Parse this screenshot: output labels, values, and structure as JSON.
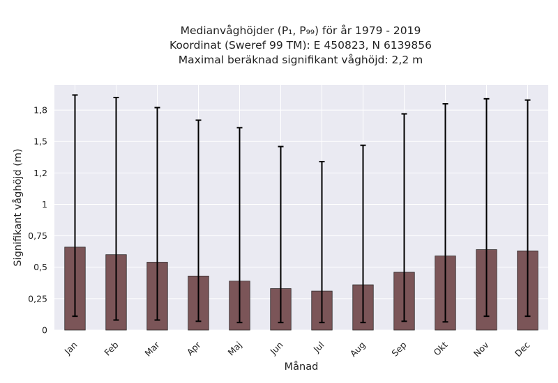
{
  "title": {
    "line1": "Medianvåghöjder (P₁, P₉₉) för år 1979 - 2019",
    "line2": "Koordinat (Sweref 99 TM): E 450823, N 6139856",
    "line3": "Maximal beräknad signifikant våghöjd: 2,2 m"
  },
  "chart_data": {
    "type": "bar",
    "title": "Medianvåghöjder (P₁, P₉₉) för år 1979 - 2019",
    "xlabel": "Månad",
    "ylabel": "Signifikant våghöjd (m)",
    "ylim": [
      0,
      1.95
    ],
    "yticks": [
      0,
      0.25,
      0.5,
      0.75,
      1,
      1.25,
      1.5,
      1.75
    ],
    "ytick_labels": [
      "0",
      "0,25",
      "0,5",
      "0,75",
      "1",
      "1,2",
      "1,5",
      "1,8"
    ],
    "categories": [
      "Jan",
      "Feb",
      "Mar",
      "Apr",
      "Maj",
      "Jun",
      "Jul",
      "Aug",
      "Sep",
      "Okt",
      "Nov",
      "Dec"
    ],
    "values": [
      0.66,
      0.6,
      0.54,
      0.43,
      0.39,
      0.33,
      0.31,
      0.36,
      0.46,
      0.59,
      0.64,
      0.63
    ],
    "p1": [
      0.11,
      0.08,
      0.08,
      0.07,
      0.06,
      0.06,
      0.06,
      0.06,
      0.07,
      0.065,
      0.11,
      0.11
    ],
    "p99": [
      1.87,
      1.85,
      1.77,
      1.67,
      1.61,
      1.46,
      1.34,
      1.47,
      1.72,
      1.8,
      1.84,
      1.83
    ],
    "grid": true,
    "colors": {
      "bar": "#7b5558",
      "bar_edge": "#2e2a2a",
      "error": "#000000",
      "plot_bg": "#eaeaf2",
      "grid": "#ffffff"
    }
  }
}
